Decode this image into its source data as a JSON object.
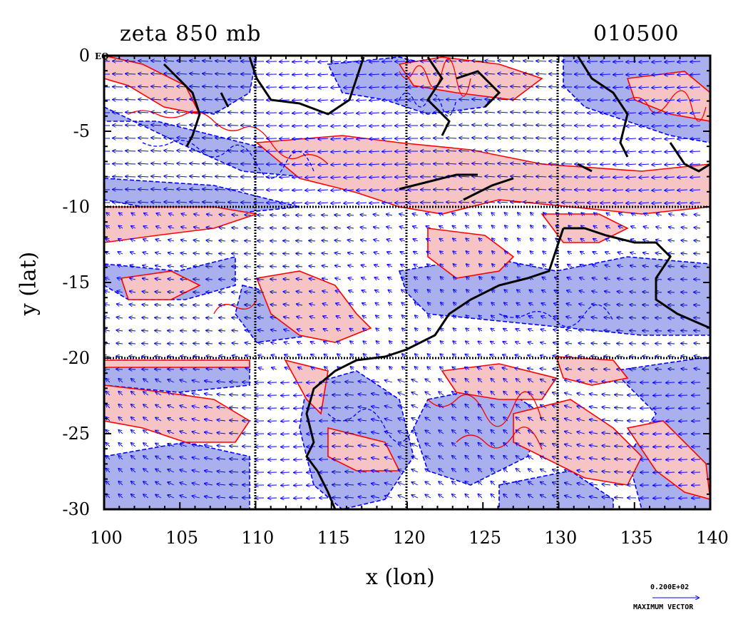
{
  "header": {
    "field_title": "zeta 850 mb",
    "timestamp": "010500",
    "eq_label": "EQ"
  },
  "axes": {
    "xlabel": "x (lon)",
    "ylabel": "y (lat)",
    "x_ticks": [
      "100",
      "105",
      "110",
      "115",
      "120",
      "125",
      "130",
      "135",
      "140"
    ],
    "y_ticks": [
      "0",
      "-5",
      "-10",
      "-15",
      "-20",
      "-25",
      "-30"
    ]
  },
  "legend": {
    "vector_value": "0.200E+02",
    "vector_label": "MAXIMUM VECTOR"
  },
  "map": {
    "lon_range": [
      100,
      140
    ],
    "lat_range": [
      -30,
      0
    ],
    "grid_lons": [
      110,
      120,
      130
    ],
    "grid_lats": [
      -10,
      -20
    ],
    "colors": {
      "positive_fill": "#f6c4c4",
      "positive_contour": "#ff0000",
      "negative_fill": "#aab0ee",
      "negative_contour": "#0000ff",
      "vector": "#0000ff",
      "coast": "#000000"
    }
  }
}
